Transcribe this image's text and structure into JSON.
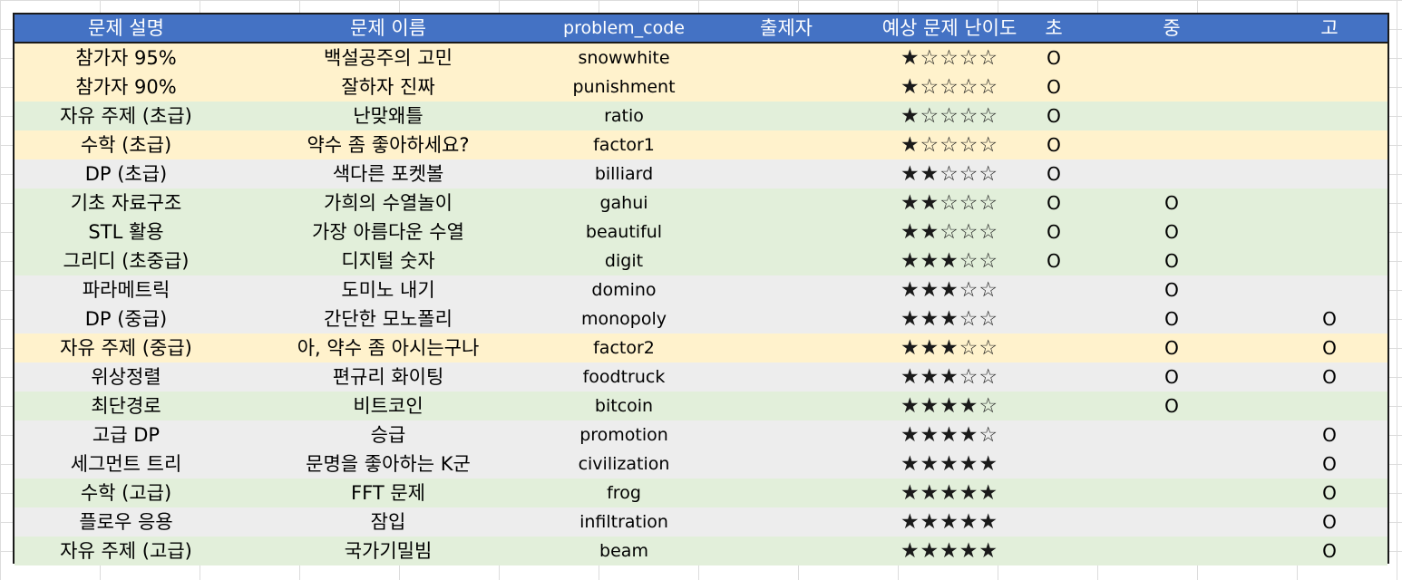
{
  "header": {
    "description": "문제 설명",
    "name": "문제 이름",
    "code": "problem_code",
    "author": "출제자",
    "difficulty": "예상 문제 난이도",
    "elementary": "초",
    "middle": "중",
    "high": "고"
  },
  "colors": {
    "header": "#4472c4",
    "yellow": "#fff2cc",
    "green": "#e2efda",
    "gray": "#ededed"
  },
  "rows": [
    {
      "description": "참가자 95%",
      "name": "백설공주의 고민",
      "code": "snowwhite",
      "author": "",
      "stars": "★☆☆☆☆",
      "e": "O",
      "m": "",
      "h": "",
      "color": "#fff2cc"
    },
    {
      "description": "참가자 90%",
      "name": "잘하자 진짜",
      "code": "punishment",
      "author": "",
      "stars": "★☆☆☆☆",
      "e": "O",
      "m": "",
      "h": "",
      "color": "#fff2cc"
    },
    {
      "description": "자유 주제 (초급)",
      "name": "난맞왜틀",
      "code": "ratio",
      "author": "",
      "stars": "★☆☆☆☆",
      "e": "O",
      "m": "",
      "h": "",
      "color": "#e2efda"
    },
    {
      "description": "수학 (초급)",
      "name": "약수 좀 좋아하세요?",
      "code": "factor1",
      "author": "",
      "stars": "★☆☆☆☆",
      "e": "O",
      "m": "",
      "h": "",
      "color": "#fff2cc"
    },
    {
      "description": "DP (초급)",
      "name": "색다른 포켓볼",
      "code": "billiard",
      "author": "",
      "stars": "★★☆☆☆",
      "e": "O",
      "m": "",
      "h": "",
      "color": "#ededed"
    },
    {
      "description": "기초 자료구조",
      "name": "가희의 수열놀이",
      "code": "gahui",
      "author": "",
      "stars": "★★☆☆☆",
      "e": "O",
      "m": "O",
      "h": "",
      "color": "#e2efda"
    },
    {
      "description": "STL 활용",
      "name": "가장 아름다운 수열",
      "code": "beautiful",
      "author": "",
      "stars": "★★☆☆☆",
      "e": "O",
      "m": "O",
      "h": "",
      "color": "#e2efda"
    },
    {
      "description": "그리디 (초중급)",
      "name": "디지털 숫자",
      "code": "digit",
      "author": "",
      "stars": "★★★☆☆",
      "e": "O",
      "m": "O",
      "h": "",
      "color": "#e2efda"
    },
    {
      "description": "파라메트릭",
      "name": "도미노 내기",
      "code": "domino",
      "author": "",
      "stars": "★★★☆☆",
      "e": "",
      "m": "O",
      "h": "",
      "color": "#ededed"
    },
    {
      "description": "DP (중급)",
      "name": "간단한 모노폴리",
      "code": "monopoly",
      "author": "",
      "stars": "★★★☆☆",
      "e": "",
      "m": "O",
      "h": "O",
      "color": "#ededed"
    },
    {
      "description": "자유 주제 (중급)",
      "name": "아, 약수 좀 아시는구나",
      "code": "factor2",
      "author": "",
      "stars": "★★★☆☆",
      "e": "",
      "m": "O",
      "h": "O",
      "color": "#fff2cc"
    },
    {
      "description": "위상정렬",
      "name": "편규리 화이팅",
      "code": "foodtruck",
      "author": "",
      "stars": "★★★☆☆",
      "e": "",
      "m": "O",
      "h": "O",
      "color": "#ededed"
    },
    {
      "description": "최단경로",
      "name": "비트코인",
      "code": "bitcoin",
      "author": "",
      "stars": "★★★★☆",
      "e": "",
      "m": "O",
      "h": "",
      "color": "#e2efda"
    },
    {
      "description": "고급 DP",
      "name": "승급",
      "code": "promotion",
      "author": "",
      "stars": "★★★★☆",
      "e": "",
      "m": "",
      "h": "O",
      "color": "#ededed"
    },
    {
      "description": "세그먼트 트리",
      "name": "문명을 좋아하는 K군",
      "code": "civilization",
      "author": "",
      "stars": "★★★★★",
      "e": "",
      "m": "",
      "h": "O",
      "color": "#ededed"
    },
    {
      "description": "수학 (고급)",
      "name": "FFT 문제",
      "code": "frog",
      "author": "",
      "stars": "★★★★★",
      "e": "",
      "m": "",
      "h": "O",
      "color": "#e2efda"
    },
    {
      "description": "플로우 응용",
      "name": "잠입",
      "code": "infiltration",
      "author": "",
      "stars": "★★★★★",
      "e": "",
      "m": "",
      "h": "O",
      "color": "#ededed"
    },
    {
      "description": "자유 주제 (고급)",
      "name": "국가기밀빔",
      "code": "beam",
      "author": "",
      "stars": "★★★★★",
      "e": "",
      "m": "",
      "h": "O",
      "color": "#e2efda"
    }
  ]
}
